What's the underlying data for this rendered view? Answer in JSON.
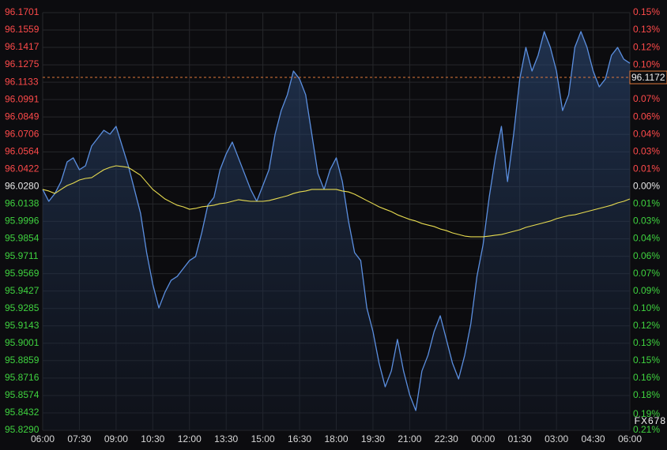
{
  "chart_data": {
    "type": "line",
    "categories": [
      "06:00",
      null,
      null,
      null,
      null,
      null,
      "07:30",
      null,
      null,
      null,
      null,
      null,
      "09:00",
      null,
      null,
      null,
      null,
      null,
      "10:30",
      null,
      null,
      null,
      null,
      null,
      "12:00",
      null,
      null,
      null,
      null,
      null,
      "13:30",
      null,
      null,
      null,
      null,
      null,
      "15:00",
      null,
      null,
      null,
      null,
      null,
      "16:30",
      null,
      null,
      null,
      null,
      null,
      "18:00",
      null,
      null,
      null,
      null,
      null,
      "19:30",
      null,
      null,
      null,
      null,
      null,
      "21:00",
      null,
      null,
      null,
      null,
      null,
      "22:30",
      null,
      null,
      null,
      null,
      null,
      "00:00",
      null,
      null,
      null,
      null,
      null,
      "01:30",
      null,
      null,
      null,
      null,
      null,
      "03:00",
      null,
      null,
      null,
      null,
      null,
      "04:30",
      null,
      null,
      null,
      null,
      null,
      "06:00"
    ],
    "series": [
      {
        "color": "#5b8fe0",
        "fill": true,
        "values": [
          96.0257,
          96.016,
          96.0224,
          96.0321,
          96.0482,
          96.0515,
          96.0418,
          96.045,
          96.0611,
          96.0676,
          96.074,
          96.0708,
          96.0772,
          96.0611,
          96.045,
          96.0257,
          96.0063,
          95.9741,
          95.9483,
          95.9289,
          95.9418,
          95.9515,
          95.9547,
          95.9612,
          95.9676,
          95.9709,
          95.9902,
          96.0128,
          96.0192,
          96.0418,
          96.0547,
          96.0644,
          96.0515,
          96.0386,
          96.0257,
          96.016,
          96.0289,
          96.0418,
          96.0708,
          96.0901,
          96.103,
          96.1224,
          96.1159,
          96.103,
          96.0708,
          96.0386,
          96.0257,
          96.0418,
          96.0515,
          96.0321,
          95.9999,
          95.9741,
          95.9676,
          95.9289,
          95.9096,
          95.8838,
          95.8645,
          95.8774,
          95.9032,
          95.8774,
          95.858,
          95.8451,
          95.8774,
          95.8903,
          95.9096,
          95.9225,
          95.9032,
          95.8838,
          95.8709,
          95.8903,
          95.916,
          95.9547,
          95.9805,
          96.0192,
          96.0515,
          96.0772,
          96.0321,
          96.0708,
          96.1159,
          96.1417,
          96.1224,
          96.1353,
          96.1546,
          96.1417,
          96.1224,
          96.0901,
          96.103,
          96.1417,
          96.1546,
          96.1417,
          96.1224,
          96.1095,
          96.1159,
          96.1353,
          96.1417,
          96.1321,
          96.1288
        ]
      },
      {
        "color": "#e8dc50",
        "fill": false,
        "values": [
          96.0257,
          96.0244,
          96.0224,
          96.0257,
          96.0289,
          96.0308,
          96.0334,
          96.0347,
          96.0353,
          96.0386,
          96.0418,
          96.0437,
          96.045,
          96.0444,
          96.0437,
          96.0405,
          96.0373,
          96.0315,
          96.0257,
          96.0218,
          96.0179,
          96.0153,
          96.0128,
          96.0115,
          96.0095,
          96.0102,
          96.0115,
          96.0121,
          96.0128,
          96.0141,
          96.0147,
          96.016,
          96.0173,
          96.0166,
          96.016,
          96.016,
          96.016,
          96.0166,
          96.0179,
          96.0192,
          96.0205,
          96.0224,
          96.0237,
          96.0244,
          96.0257,
          96.0257,
          96.0257,
          96.0257,
          96.0257,
          96.0244,
          96.0237,
          96.0218,
          96.0192,
          96.0166,
          96.0141,
          96.0115,
          96.0095,
          96.0076,
          96.005,
          96.0031,
          96.0012,
          95.9999,
          95.9979,
          95.9966,
          95.9954,
          95.9934,
          95.9921,
          95.9902,
          95.9889,
          95.9876,
          95.987,
          95.987,
          95.987,
          95.9876,
          95.9883,
          95.9889,
          95.9902,
          95.9915,
          95.9928,
          95.9947,
          95.996,
          95.9973,
          95.9986,
          95.9999,
          96.0018,
          96.0031,
          96.0044,
          96.005,
          96.0063,
          96.0076,
          96.0089,
          96.0102,
          96.0115,
          96.0128,
          96.0147,
          96.016,
          96.0179
        ]
      }
    ],
    "ylim": [
      95.829,
      96.1701
    ],
    "yticks": [
      96.1701,
      96.1559,
      96.1417,
      96.1275,
      96.1133,
      96.0991,
      96.0849,
      96.0706,
      96.0564,
      96.0422,
      {
        "value": 96.028,
        "label": "96.0280"
      },
      96.0138,
      95.9996,
      95.9854,
      95.9711,
      95.9569,
      95.9427,
      95.9285,
      95.9143,
      95.9001,
      95.8859,
      95.8716,
      95.8574,
      95.8432,
      {
        "value": 95.829,
        "label": "95.8290"
      }
    ],
    "y2lim": [
      -0.2072,
      0.148
    ],
    "y2ticks": [
      {
        "value": 0.148,
        "label": "0.15%"
      },
      {
        "value": 0.1332,
        "label": "0.13%"
      },
      {
        "value": 0.1184,
        "label": "0.12%"
      },
      {
        "value": 0.1036,
        "label": "0.10%"
      },
      {
        "value": 0.0741,
        "label": "0.07%"
      },
      {
        "value": 0.0593,
        "label": "0.06%"
      },
      {
        "value": 0.0444,
        "label": "0.04%"
      },
      {
        "value": 0.0296,
        "label": "0.03%"
      },
      {
        "value": 0.0148,
        "label": "0.01%"
      },
      {
        "value": 0,
        "label": "0.00%"
      },
      {
        "value": -0.0148,
        "label": "0.01%"
      },
      {
        "value": -0.0296,
        "label": "0.03%"
      },
      {
        "value": -0.0444,
        "label": "0.04%"
      },
      {
        "value": -0.0593,
        "label": "0.06%"
      },
      {
        "value": -0.074,
        "label": "0.07%"
      },
      {
        "value": -0.0888,
        "label": "0.09%"
      },
      {
        "value": -0.1036,
        "label": "0.10%"
      },
      {
        "value": -0.1184,
        "label": "0.12%"
      },
      {
        "value": -0.1332,
        "label": "0.13%"
      },
      {
        "value": -0.148,
        "label": "0.15%"
      },
      {
        "value": -0.1629,
        "label": "0.16%"
      },
      {
        "value": -0.1777,
        "label": "0.18%"
      },
      {
        "value": -0.1935,
        "label": "0.19%"
      },
      {
        "value": -0.2072,
        "label": "0.21%"
      }
    ],
    "up_color": "#ff4a4a",
    "down_color": "#3fd33f",
    "neutral_color": "#e8e8e8",
    "grid": true,
    "price_line": {
      "value": 96.1172,
      "color": "#e0783a"
    },
    "watermark": "FX678"
  }
}
